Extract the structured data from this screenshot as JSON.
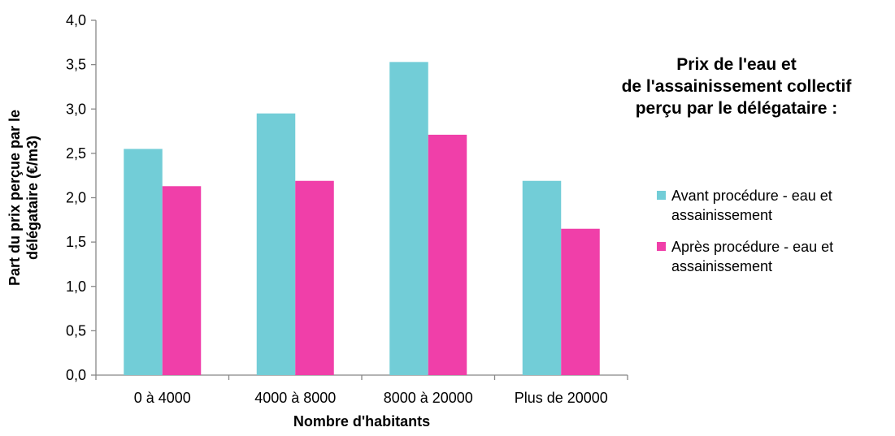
{
  "chart_data": {
    "type": "bar",
    "title": "Prix de l'eau et\nde l'assainissement collectif\nperçu par le délégataire :",
    "title_lines": [
      "Prix de l'eau et",
      "de l'assainissement collectif",
      "perçu par le délégataire :"
    ],
    "xlabel": "Nombre d'habitants",
    "ylabel_lines": [
      "Part du prix perçue par le",
      "délégataire (€/m3)"
    ],
    "categories": [
      "0 à 4000",
      "4000 à 8000",
      "8000 à 20000",
      "Plus de 20000"
    ],
    "series": [
      {
        "name": "Avant procédure - eau et assainissement",
        "name_lines": [
          "Avant procédure - eau et",
          "assainissement"
        ],
        "color": "#72CDD7",
        "values": [
          2.55,
          2.95,
          3.53,
          2.19
        ]
      },
      {
        "name": "Après procédure - eau et assainissement",
        "name_lines": [
          "Après procédure - eau et",
          "assainissement"
        ],
        "color": "#F03FA9",
        "values": [
          2.13,
          2.19,
          2.71,
          1.65
        ]
      }
    ],
    "ylim": [
      0,
      4
    ],
    "ytick_labels": [
      "0,0",
      "0,5",
      "1,0",
      "1,5",
      "2,0",
      "2,5",
      "3,0",
      "3,5",
      "4,0"
    ],
    "grid": false,
    "legend_position": "right"
  }
}
